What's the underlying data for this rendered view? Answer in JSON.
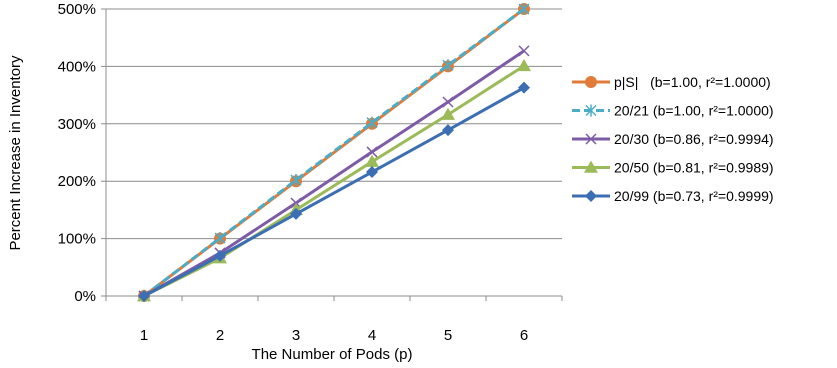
{
  "chart_data": {
    "type": "line",
    "title": "",
    "xlabel": "The Number of Pods (p)",
    "ylabel": "Percent Increase in Inventory",
    "x": [
      1,
      2,
      3,
      4,
      5,
      6
    ],
    "x_tick_labels": [
      "1",
      "2",
      "3",
      "4",
      "5",
      "6"
    ],
    "xlim": [
      0.5,
      6.5
    ],
    "ylim": [
      0,
      500
    ],
    "y_ticks": [
      0,
      100,
      200,
      300,
      400,
      500
    ],
    "y_tick_labels": [
      "0%",
      "100%",
      "200%",
      "300%",
      "400%",
      "500%"
    ],
    "grid": "horizontal",
    "legend_position": "right",
    "series": [
      {
        "name": "p|S|   (b=1.00, r²=1.0000)",
        "values": [
          0,
          100,
          200,
          300,
          400,
          500
        ],
        "color": "#E07B39",
        "marker": "circle",
        "dash": "solid"
      },
      {
        "name": "20/21 (b=1.00, r²=1.0000)",
        "values": [
          0,
          101,
          202,
          302,
          402,
          500
        ],
        "color": "#4BACC6",
        "marker": "asterisk",
        "dash": "dashed"
      },
      {
        "name": "20/30 (b=0.86, r²=0.9994)",
        "values": [
          0,
          75,
          162,
          251,
          338,
          427
        ],
        "color": "#7D5BA6",
        "marker": "x",
        "dash": "solid"
      },
      {
        "name": "20/50 (b=0.81, r²=0.9989)",
        "values": [
          0,
          66,
          150,
          234,
          316,
          401
        ],
        "color": "#9BBB59",
        "marker": "triangle",
        "dash": "solid"
      },
      {
        "name": "20/99 (b=0.73, r²=0.9999)",
        "values": [
          0,
          70,
          143,
          216,
          289,
          363
        ],
        "color": "#3C6EB4",
        "marker": "diamond",
        "dash": "solid"
      }
    ]
  }
}
